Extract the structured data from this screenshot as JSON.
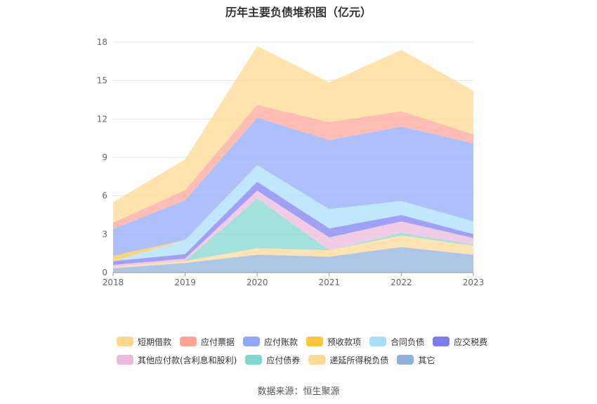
{
  "chart_data": {
    "type": "area",
    "stacked": true,
    "title": "历年主要负债堆积图（亿元）",
    "x": [
      "2018",
      "2019",
      "2020",
      "2021",
      "2022",
      "2023"
    ],
    "yticks": [
      0,
      3,
      6,
      9,
      12,
      15,
      18
    ],
    "ylim": [
      0,
      18
    ],
    "grid": true,
    "legend_position": "bottom",
    "series": [
      {
        "name": "其它",
        "color": "#8fb0dc",
        "values": [
          0.35,
          0.75,
          1.4,
          1.25,
          2.0,
          1.4
        ]
      },
      {
        "name": "递延所得税负债",
        "color": "#ffd891",
        "values": [
          0.1,
          0.15,
          0.5,
          0.5,
          0.9,
          0.7
        ]
      },
      {
        "name": "应付债券",
        "color": "#80d6d0",
        "values": [
          0.0,
          0.0,
          3.9,
          0.0,
          0.2,
          0.1
        ]
      },
      {
        "name": "其他应付款(含利息和股利)",
        "color": "#ebb9dc",
        "values": [
          0.15,
          0.2,
          0.6,
          1.0,
          0.9,
          0.5
        ]
      },
      {
        "name": "应交税费",
        "color": "#7c7cf0",
        "values": [
          0.3,
          0.35,
          0.7,
          0.7,
          0.5,
          0.3
        ]
      },
      {
        "name": "合同负债",
        "color": "#a7defa",
        "values": [
          0.0,
          1.1,
          1.3,
          1.5,
          1.1,
          1.0
        ]
      },
      {
        "name": "预收款项",
        "color": "#ffc53d",
        "values": [
          0.4,
          0.0,
          0.0,
          0.0,
          0.0,
          0.0
        ]
      },
      {
        "name": "应付账款",
        "color": "#8fa8fa",
        "values": [
          2.1,
          3.1,
          3.7,
          5.4,
          5.8,
          6.1
        ]
      },
      {
        "name": "应付票据",
        "color": "#fca496",
        "values": [
          0.5,
          0.8,
          1.0,
          1.4,
          1.2,
          0.7
        ]
      },
      {
        "name": "短期借款",
        "color": "#ffd88e",
        "values": [
          1.6,
          2.4,
          4.6,
          3.1,
          4.8,
          3.4
        ]
      }
    ]
  },
  "legend": [
    [
      {
        "label": "短期借款",
        "color": "#ffd88e"
      },
      {
        "label": "应付票据",
        "color": "#fca496"
      },
      {
        "label": "应付账款",
        "color": "#8fa8fa"
      },
      {
        "label": "预收款项",
        "color": "#ffc53d"
      },
      {
        "label": "合同负债",
        "color": "#a7defa"
      },
      {
        "label": "应交税费",
        "color": "#7c7cf0"
      }
    ],
    [
      {
        "label": "其他应付款(含利息和股利)",
        "color": "#ebb9dc"
      },
      {
        "label": "应付债券",
        "color": "#80d6d0"
      },
      {
        "label": "递延所得税负债",
        "color": "#ffd891"
      },
      {
        "label": "其它",
        "color": "#8fb0dc"
      }
    ]
  ],
  "source": "数据来源：恒生聚源"
}
